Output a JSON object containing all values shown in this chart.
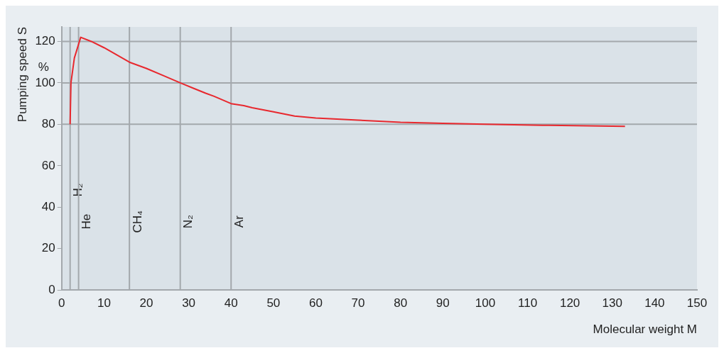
{
  "chart_data": {
    "type": "line",
    "xlabel": "Molecular weight M",
    "ylabel": "Pumping speed S",
    "annotations": [
      "%"
    ],
    "series": [
      {
        "color": "#e8282e",
        "x": [
          2,
          2.2,
          3,
          4.5,
          7,
          10,
          13,
          16,
          20,
          24,
          28,
          31,
          34,
          36,
          40,
          43,
          45,
          50,
          55,
          60,
          65,
          70,
          80,
          90,
          100,
          115,
          133
        ],
        "values": [
          80,
          100,
          112,
          122,
          120,
          117,
          113.5,
          110,
          107,
          103.5,
          100,
          97.5,
          95,
          93.5,
          90,
          89,
          88,
          86,
          84,
          83,
          82.5,
          82,
          81,
          80.5,
          80,
          79.5,
          79
        ]
      }
    ],
    "xlim": [
      0,
      150
    ],
    "ylim": [
      0,
      127
    ],
    "xticks": [
      0,
      10,
      20,
      30,
      40,
      50,
      60,
      70,
      80,
      90,
      100,
      110,
      120,
      130,
      140,
      150
    ],
    "yticks": [
      0,
      20,
      40,
      60,
      80,
      100,
      120
    ],
    "ref_lines": [
      {
        "axis": "y",
        "value": 80,
        "color": "#a3a8ac"
      },
      {
        "axis": "y",
        "value": 100,
        "color": "#a3a8ac"
      },
      {
        "axis": "y",
        "value": 120,
        "color": "#a3a8ac"
      },
      {
        "axis": "x",
        "value": 2,
        "label": "H₂",
        "color": "#a3a8ac"
      },
      {
        "axis": "x",
        "value": 4,
        "label": "He",
        "color": "#a3a8ac"
      },
      {
        "axis": "x",
        "value": 16,
        "label": "CH₄",
        "color": "#a3a8ac"
      },
      {
        "axis": "x",
        "value": 28,
        "label": "N₂",
        "color": "#a3a8ac"
      },
      {
        "axis": "x",
        "value": 40,
        "label": "Ar",
        "color": "#a3a8ac"
      }
    ],
    "grid": false,
    "legend": false,
    "marker": "none",
    "line_style": "solid"
  }
}
